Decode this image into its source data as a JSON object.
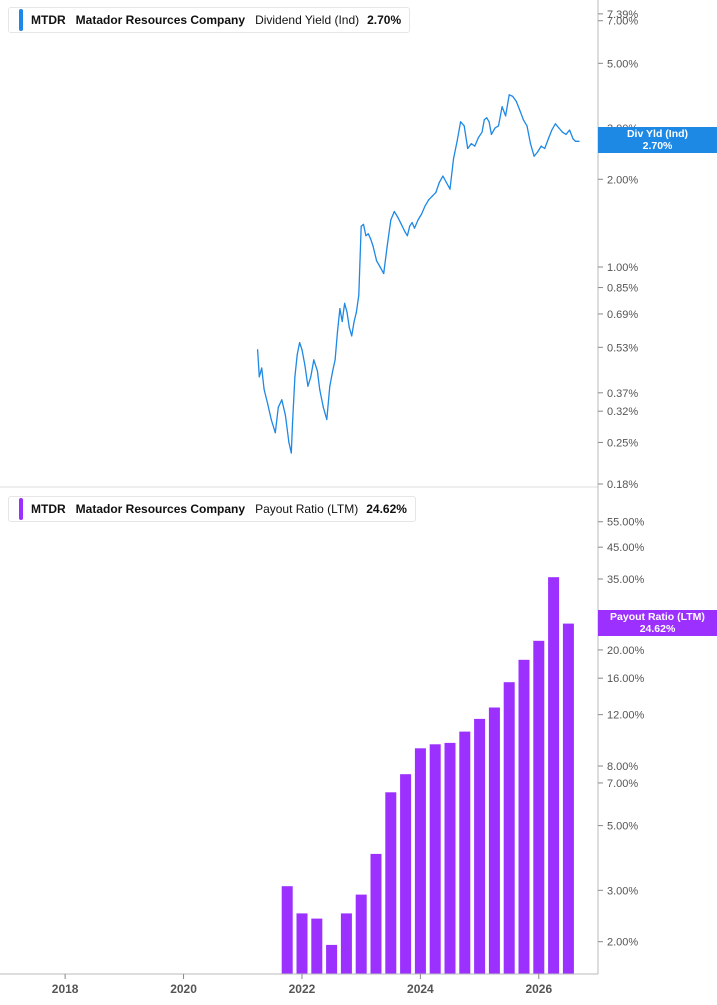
{
  "top_legend": {
    "ticker": "MTDR",
    "company": "Matador Resources Company",
    "metric": "Dividend Yield (Ind)",
    "value": "2.70%"
  },
  "bottom_legend": {
    "ticker": "MTDR",
    "company": "Matador Resources Company",
    "metric": "Payout Ratio (LTM)",
    "value": "24.62%"
  },
  "top_tag": {
    "label": "Div Yld (Ind)",
    "value": "2.70%"
  },
  "bottom_tag": {
    "label": "Payout Ratio (LTM)",
    "value": "24.62%"
  },
  "colors": {
    "div_yield": "#1e88e5",
    "payout": "#9b30ff",
    "axis": "#555555",
    "grid": "#dddddd"
  },
  "chart_data": [
    {
      "type": "line",
      "title": "Dividend Yield (Ind)",
      "series": [
        {
          "name": "Dividend Yield (Ind)",
          "color": "#1e88e5",
          "x": [
            2021.25,
            2021.28,
            2021.32,
            2021.36,
            2021.42,
            2021.48,
            2021.55,
            2021.6,
            2021.66,
            2021.72,
            2021.78,
            2021.82,
            2021.84,
            2021.88,
            2021.92,
            2021.96,
            2022.0,
            2022.05,
            2022.1,
            2022.15,
            2022.2,
            2022.26,
            2022.3,
            2022.36,
            2022.42,
            2022.47,
            2022.52,
            2022.56,
            2022.6,
            2022.64,
            2022.68,
            2022.72,
            2022.76,
            2022.8,
            2022.84,
            2022.88,
            2022.92,
            2022.96,
            2023.0,
            2023.04,
            2023.08,
            2023.12,
            2023.16,
            2023.2,
            2023.26,
            2023.32,
            2023.38,
            2023.44,
            2023.5,
            2023.56,
            2023.62,
            2023.68,
            2023.74,
            2023.78,
            2023.82,
            2023.86,
            2023.9,
            2023.96,
            2024.02,
            2024.08,
            2024.14,
            2024.2,
            2024.26,
            2024.32,
            2024.38,
            2024.44,
            2024.5,
            2024.56,
            2024.62,
            2024.68,
            2024.74,
            2024.8,
            2024.86,
            2024.92,
            2024.98,
            2025.04,
            2025.08,
            2025.12,
            2025.16,
            2025.2,
            2025.26,
            2025.32,
            2025.38,
            2025.44,
            2025.5,
            2025.56,
            2025.62,
            2025.68,
            2025.74,
            2025.8,
            2025.86,
            2025.92,
            2025.98,
            2026.04,
            2026.1,
            2026.16,
            2026.22,
            2026.28,
            2026.34,
            2026.4,
            2026.46,
            2026.52,
            2026.58,
            2026.62,
            2026.68
          ],
          "values": [
            0.52,
            0.42,
            0.45,
            0.38,
            0.34,
            0.3,
            0.27,
            0.33,
            0.35,
            0.31,
            0.25,
            0.23,
            0.29,
            0.42,
            0.5,
            0.55,
            0.52,
            0.46,
            0.39,
            0.42,
            0.48,
            0.44,
            0.38,
            0.33,
            0.3,
            0.39,
            0.44,
            0.48,
            0.6,
            0.72,
            0.65,
            0.75,
            0.7,
            0.62,
            0.58,
            0.65,
            0.7,
            0.8,
            1.38,
            1.4,
            1.28,
            1.3,
            1.25,
            1.18,
            1.05,
            1.0,
            0.95,
            1.18,
            1.45,
            1.55,
            1.48,
            1.4,
            1.32,
            1.28,
            1.38,
            1.42,
            1.36,
            1.45,
            1.52,
            1.62,
            1.7,
            1.75,
            1.8,
            1.95,
            2.05,
            1.95,
            1.85,
            2.35,
            2.7,
            3.15,
            3.05,
            2.55,
            2.65,
            2.6,
            2.78,
            2.9,
            3.2,
            3.25,
            3.15,
            2.85,
            3.0,
            3.05,
            3.55,
            3.3,
            3.9,
            3.85,
            3.7,
            3.45,
            3.2,
            3.05,
            2.65,
            2.4,
            2.48,
            2.6,
            2.55,
            2.75,
            2.95,
            3.1,
            3.0,
            2.9,
            2.85,
            2.95,
            2.75,
            2.7,
            2.7
          ]
        }
      ],
      "yscale": "log",
      "ylim": [
        0.18,
        7.5
      ],
      "yticks": [
        "7.39%",
        "7.00%",
        "5.00%",
        "3.00%",
        "2.00%",
        "1.00%",
        "0.85%",
        "0.69%",
        "0.53%",
        "0.37%",
        "0.32%",
        "0.25%",
        "0.18%"
      ],
      "ytick_values": [
        7.39,
        7.0,
        5.0,
        3.0,
        2.0,
        1.0,
        0.85,
        0.69,
        0.53,
        0.37,
        0.32,
        0.25,
        0.18
      ],
      "xlim": [
        2016.9,
        2027.0
      ]
    },
    {
      "type": "bar",
      "title": "Payout Ratio (LTM)",
      "series": [
        {
          "name": "Payout Ratio (LTM)",
          "color": "#9b30ff",
          "x": [
            2021.75,
            2022.0,
            2022.25,
            2022.5,
            2022.75,
            2023.0,
            2023.25,
            2023.5,
            2023.75,
            2024.0,
            2024.25,
            2024.5,
            2024.75,
            2025.0,
            2025.25,
            2025.5,
            2025.75,
            2026.0,
            2026.25,
            2026.5
          ],
          "values": [
            3.1,
            2.5,
            2.4,
            1.95,
            2.5,
            2.9,
            4.0,
            6.5,
            7.5,
            9.2,
            9.5,
            9.6,
            10.5,
            11.6,
            12.7,
            15.5,
            18.5,
            21.5,
            35.5,
            24.62
          ]
        }
      ],
      "yscale": "log",
      "ylim": [
        1.55,
        58
      ],
      "yticks": [
        "55.00%",
        "45.00%",
        "35.00%",
        "20.00%",
        "16.00%",
        "12.00%",
        "8.00%",
        "7.00%",
        "5.00%",
        "3.00%",
        "2.00%"
      ],
      "ytick_values": [
        55,
        45,
        35,
        20,
        16,
        12,
        8,
        7,
        5,
        3,
        2
      ],
      "xlim": [
        2016.9,
        2027.0
      ],
      "xticks": [
        "2018",
        "2020",
        "2022",
        "2024",
        "2026"
      ],
      "xtick_values": [
        2018,
        2020,
        2022,
        2024,
        2026
      ]
    }
  ]
}
